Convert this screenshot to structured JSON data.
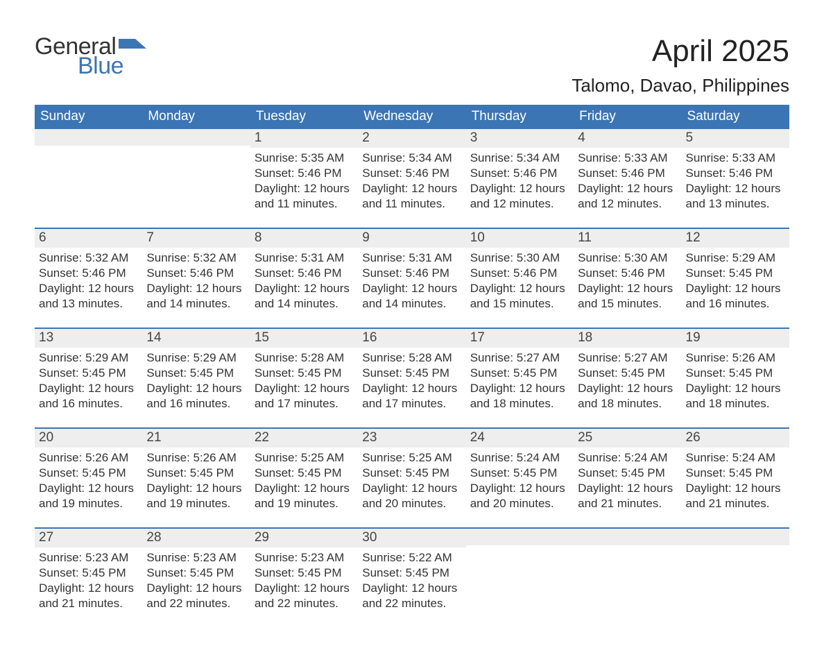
{
  "brand": {
    "word1": "General",
    "word2": "Blue",
    "flag_color": "#3b75b3",
    "text_color_dark": "#333333",
    "text_color_blue": "#3b75b3"
  },
  "title": {
    "month": "April 2025",
    "location": "Talomo, Davao, Philippines"
  },
  "colors": {
    "header_bg": "#3b75b3",
    "header_text": "#ffffff",
    "daynum_bg": "#eeeeee",
    "week_divider": "#3b75b3",
    "body_text": "#333333",
    "page_bg": "#ffffff"
  },
  "daysOfWeek": [
    "Sunday",
    "Monday",
    "Tuesday",
    "Wednesday",
    "Thursday",
    "Friday",
    "Saturday"
  ],
  "weeks": [
    [
      {
        "n": "",
        "sunrise": "",
        "sunset": "",
        "daylight": ""
      },
      {
        "n": "",
        "sunrise": "",
        "sunset": "",
        "daylight": ""
      },
      {
        "n": "1",
        "sunrise": "Sunrise: 5:35 AM",
        "sunset": "Sunset: 5:46 PM",
        "daylight": "Daylight: 12 hours and 11 minutes."
      },
      {
        "n": "2",
        "sunrise": "Sunrise: 5:34 AM",
        "sunset": "Sunset: 5:46 PM",
        "daylight": "Daylight: 12 hours and 11 minutes."
      },
      {
        "n": "3",
        "sunrise": "Sunrise: 5:34 AM",
        "sunset": "Sunset: 5:46 PM",
        "daylight": "Daylight: 12 hours and 12 minutes."
      },
      {
        "n": "4",
        "sunrise": "Sunrise: 5:33 AM",
        "sunset": "Sunset: 5:46 PM",
        "daylight": "Daylight: 12 hours and 12 minutes."
      },
      {
        "n": "5",
        "sunrise": "Sunrise: 5:33 AM",
        "sunset": "Sunset: 5:46 PM",
        "daylight": "Daylight: 12 hours and 13 minutes."
      }
    ],
    [
      {
        "n": "6",
        "sunrise": "Sunrise: 5:32 AM",
        "sunset": "Sunset: 5:46 PM",
        "daylight": "Daylight: 12 hours and 13 minutes."
      },
      {
        "n": "7",
        "sunrise": "Sunrise: 5:32 AM",
        "sunset": "Sunset: 5:46 PM",
        "daylight": "Daylight: 12 hours and 14 minutes."
      },
      {
        "n": "8",
        "sunrise": "Sunrise: 5:31 AM",
        "sunset": "Sunset: 5:46 PM",
        "daylight": "Daylight: 12 hours and 14 minutes."
      },
      {
        "n": "9",
        "sunrise": "Sunrise: 5:31 AM",
        "sunset": "Sunset: 5:46 PM",
        "daylight": "Daylight: 12 hours and 14 minutes."
      },
      {
        "n": "10",
        "sunrise": "Sunrise: 5:30 AM",
        "sunset": "Sunset: 5:46 PM",
        "daylight": "Daylight: 12 hours and 15 minutes."
      },
      {
        "n": "11",
        "sunrise": "Sunrise: 5:30 AM",
        "sunset": "Sunset: 5:46 PM",
        "daylight": "Daylight: 12 hours and 15 minutes."
      },
      {
        "n": "12",
        "sunrise": "Sunrise: 5:29 AM",
        "sunset": "Sunset: 5:45 PM",
        "daylight": "Daylight: 12 hours and 16 minutes."
      }
    ],
    [
      {
        "n": "13",
        "sunrise": "Sunrise: 5:29 AM",
        "sunset": "Sunset: 5:45 PM",
        "daylight": "Daylight: 12 hours and 16 minutes."
      },
      {
        "n": "14",
        "sunrise": "Sunrise: 5:29 AM",
        "sunset": "Sunset: 5:45 PM",
        "daylight": "Daylight: 12 hours and 16 minutes."
      },
      {
        "n": "15",
        "sunrise": "Sunrise: 5:28 AM",
        "sunset": "Sunset: 5:45 PM",
        "daylight": "Daylight: 12 hours and 17 minutes."
      },
      {
        "n": "16",
        "sunrise": "Sunrise: 5:28 AM",
        "sunset": "Sunset: 5:45 PM",
        "daylight": "Daylight: 12 hours and 17 minutes."
      },
      {
        "n": "17",
        "sunrise": "Sunrise: 5:27 AM",
        "sunset": "Sunset: 5:45 PM",
        "daylight": "Daylight: 12 hours and 18 minutes."
      },
      {
        "n": "18",
        "sunrise": "Sunrise: 5:27 AM",
        "sunset": "Sunset: 5:45 PM",
        "daylight": "Daylight: 12 hours and 18 minutes."
      },
      {
        "n": "19",
        "sunrise": "Sunrise: 5:26 AM",
        "sunset": "Sunset: 5:45 PM",
        "daylight": "Daylight: 12 hours and 18 minutes."
      }
    ],
    [
      {
        "n": "20",
        "sunrise": "Sunrise: 5:26 AM",
        "sunset": "Sunset: 5:45 PM",
        "daylight": "Daylight: 12 hours and 19 minutes."
      },
      {
        "n": "21",
        "sunrise": "Sunrise: 5:26 AM",
        "sunset": "Sunset: 5:45 PM",
        "daylight": "Daylight: 12 hours and 19 minutes."
      },
      {
        "n": "22",
        "sunrise": "Sunrise: 5:25 AM",
        "sunset": "Sunset: 5:45 PM",
        "daylight": "Daylight: 12 hours and 19 minutes."
      },
      {
        "n": "23",
        "sunrise": "Sunrise: 5:25 AM",
        "sunset": "Sunset: 5:45 PM",
        "daylight": "Daylight: 12 hours and 20 minutes."
      },
      {
        "n": "24",
        "sunrise": "Sunrise: 5:24 AM",
        "sunset": "Sunset: 5:45 PM",
        "daylight": "Daylight: 12 hours and 20 minutes."
      },
      {
        "n": "25",
        "sunrise": "Sunrise: 5:24 AM",
        "sunset": "Sunset: 5:45 PM",
        "daylight": "Daylight: 12 hours and 21 minutes."
      },
      {
        "n": "26",
        "sunrise": "Sunrise: 5:24 AM",
        "sunset": "Sunset: 5:45 PM",
        "daylight": "Daylight: 12 hours and 21 minutes."
      }
    ],
    [
      {
        "n": "27",
        "sunrise": "Sunrise: 5:23 AM",
        "sunset": "Sunset: 5:45 PM",
        "daylight": "Daylight: 12 hours and 21 minutes."
      },
      {
        "n": "28",
        "sunrise": "Sunrise: 5:23 AM",
        "sunset": "Sunset: 5:45 PM",
        "daylight": "Daylight: 12 hours and 22 minutes."
      },
      {
        "n": "29",
        "sunrise": "Sunrise: 5:23 AM",
        "sunset": "Sunset: 5:45 PM",
        "daylight": "Daylight: 12 hours and 22 minutes."
      },
      {
        "n": "30",
        "sunrise": "Sunrise: 5:22 AM",
        "sunset": "Sunset: 5:45 PM",
        "daylight": "Daylight: 12 hours and 22 minutes."
      },
      {
        "n": "",
        "sunrise": "",
        "sunset": "",
        "daylight": ""
      },
      {
        "n": "",
        "sunrise": "",
        "sunset": "",
        "daylight": ""
      },
      {
        "n": "",
        "sunrise": "",
        "sunset": "",
        "daylight": ""
      }
    ]
  ]
}
